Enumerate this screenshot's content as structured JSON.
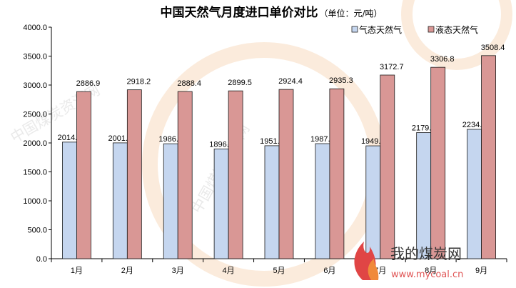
{
  "chart_data": {
    "type": "bar",
    "title": "中国天然气月度进口单价对比",
    "subtitle": "（单位：元/吨）",
    "categories": [
      "1月",
      "2月",
      "3月",
      "4月",
      "5月",
      "6月",
      "7月",
      "8月",
      "9月"
    ],
    "series": [
      {
        "name": "气态天然气",
        "color": "#c5d6ef",
        "values": [
          2014.1,
          2001.1,
          1986.0,
          1896.7,
          1951.9,
          1987.7,
          1949.9,
          2179.4,
          2234.6
        ],
        "labels": [
          "2014.1",
          "2001.1",
          "1986.0",
          "1896.7",
          "1951.9",
          "1987.7",
          "1949.9",
          "2179.4",
          "2234.6"
        ]
      },
      {
        "name": "液态天然气",
        "color": "#d99795",
        "values": [
          2886.9,
          2918.2,
          2888.4,
          2899.5,
          2924.4,
          2935.3,
          3172.7,
          3306.8,
          3508.4
        ],
        "labels": [
          "2886.9",
          "2918.2",
          "2888.4",
          "2899.5",
          "2924.4",
          "2935.3",
          "3172.7",
          "3306.8",
          "3508.4"
        ]
      }
    ],
    "ylim": [
      0,
      4000
    ],
    "yticks": [
      0,
      500,
      1000,
      1500,
      2000,
      2500,
      3000,
      3500,
      4000
    ],
    "yticklabels": [
      "0.0",
      "500.0",
      "1000.0",
      "1500.0",
      "2000.0",
      "2500.0",
      "3000.0",
      "3500.0",
      "4000.0"
    ],
    "xlabel": "",
    "ylabel": "",
    "grid": false,
    "legend": "top-right"
  },
  "watermark": {
    "site_name": "我的煤炭网",
    "site_url": "www.mycoal.cn",
    "faint_text": "中国煤炭资源网"
  }
}
